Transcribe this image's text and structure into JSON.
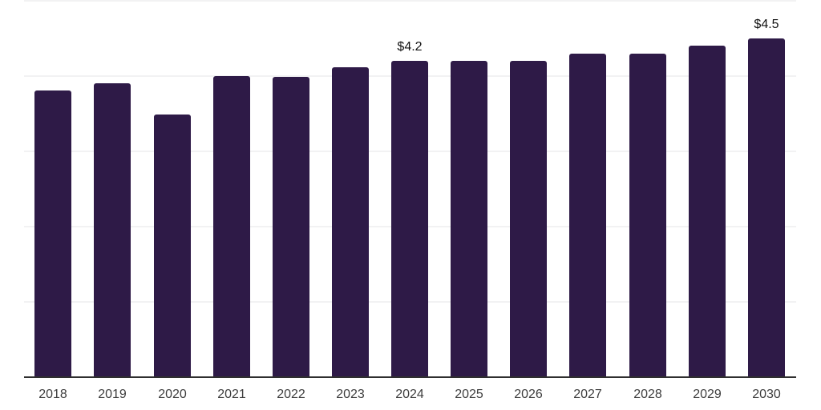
{
  "chart_data": {
    "type": "bar",
    "categories": [
      "2018",
      "2019",
      "2020",
      "2021",
      "2022",
      "2023",
      "2024",
      "2025",
      "2026",
      "2027",
      "2028",
      "2029",
      "2030"
    ],
    "values": [
      3.81,
      3.9,
      3.49,
      4.0,
      3.99,
      4.12,
      4.2,
      4.2,
      4.2,
      4.3,
      4.3,
      4.4,
      4.5
    ],
    "point_labels": [
      "",
      "",
      "",
      "",
      "",
      "",
      "$4.2",
      "",
      "",
      "",
      "",
      "",
      "$4.5"
    ],
    "title": "",
    "xlabel": "",
    "ylabel": "",
    "ylim": [
      0,
      5
    ],
    "gridline_values": [
      1,
      2,
      3,
      4,
      5
    ],
    "grid": "horizontal",
    "legend": "none",
    "colors": {
      "bar": "#2e1a47",
      "axis_line": "#2f2f2f",
      "gridline": "#f2f2f3",
      "tick_label": "#3d3d3d",
      "value_label": "#111111",
      "background": "#ffffff"
    }
  }
}
